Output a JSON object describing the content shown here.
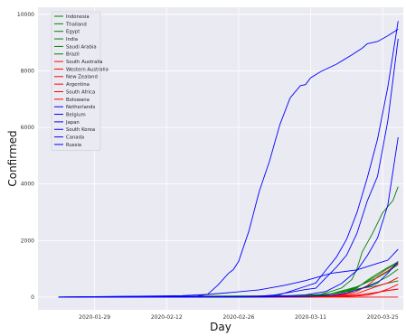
{
  "chart_data": {
    "type": "line",
    "xlabel": "Day",
    "ylabel": "Confirmed",
    "xlim": [
      "2020-01-18",
      "2020-03-29"
    ],
    "ylim": [
      -450,
      10250
    ],
    "x_ticks": [
      "2020-01-29",
      "2020-02-12",
      "2020-02-26",
      "2020-03-11",
      "2020-03-25"
    ],
    "y_ticks": [
      0,
      2000,
      4000,
      6000,
      8000,
      10000
    ],
    "grid": true,
    "legend_position": "top-left",
    "series": [
      {
        "name": "Indonesia",
        "color": "#008000",
        "points": [
          [
            "2020-01-22",
            0
          ],
          [
            "2020-03-01",
            0
          ],
          [
            "2020-03-02",
            2
          ],
          [
            "2020-03-10",
            27
          ],
          [
            "2020-03-15",
            117
          ],
          [
            "2020-03-20",
            369
          ],
          [
            "2020-03-24",
            686
          ],
          [
            "2020-03-26",
            893
          ],
          [
            "2020-03-28",
            1155
          ]
        ]
      },
      {
        "name": "Thailand",
        "color": "#008000",
        "points": [
          [
            "2020-01-22",
            2
          ],
          [
            "2020-02-12",
            33
          ],
          [
            "2020-03-01",
            42
          ],
          [
            "2020-03-10",
            53
          ],
          [
            "2020-03-14",
            82
          ],
          [
            "2020-03-17",
            177
          ],
          [
            "2020-03-20",
            322
          ],
          [
            "2020-03-22",
            599
          ],
          [
            "2020-03-24",
            827
          ],
          [
            "2020-03-26",
            1045
          ],
          [
            "2020-03-28",
            1245
          ]
        ]
      },
      {
        "name": "Egypt",
        "color": "#008000",
        "points": [
          [
            "2020-01-22",
            0
          ],
          [
            "2020-02-14",
            1
          ],
          [
            "2020-03-06",
            15
          ],
          [
            "2020-03-09",
            59
          ],
          [
            "2020-03-15",
            110
          ],
          [
            "2020-03-20",
            285
          ],
          [
            "2020-03-24",
            402
          ],
          [
            "2020-03-26",
            495
          ],
          [
            "2020-03-28",
            576
          ]
        ]
      },
      {
        "name": "India",
        "color": "#008000",
        "points": [
          [
            "2020-01-22",
            0
          ],
          [
            "2020-01-30",
            1
          ],
          [
            "2020-03-03",
            5
          ],
          [
            "2020-03-10",
            56
          ],
          [
            "2020-03-15",
            113
          ],
          [
            "2020-03-20",
            244
          ],
          [
            "2020-03-24",
            536
          ],
          [
            "2020-03-26",
            727
          ],
          [
            "2020-03-28",
            987
          ]
        ]
      },
      {
        "name": "Saudi Arabia",
        "color": "#008000",
        "points": [
          [
            "2020-01-22",
            0
          ],
          [
            "2020-03-02",
            0
          ],
          [
            "2020-03-08",
            11
          ],
          [
            "2020-03-12",
            45
          ],
          [
            "2020-03-15",
            103
          ],
          [
            "2020-03-18",
            238
          ],
          [
            "2020-03-20",
            344
          ],
          [
            "2020-03-24",
            767
          ],
          [
            "2020-03-26",
            1012
          ],
          [
            "2020-03-28",
            1203
          ]
        ]
      },
      {
        "name": "Brazil",
        "color": "#008000",
        "points": [
          [
            "2020-01-22",
            0
          ],
          [
            "2020-02-26",
            1
          ],
          [
            "2020-03-05",
            8
          ],
          [
            "2020-03-10",
            25
          ],
          [
            "2020-03-12",
            52
          ],
          [
            "2020-03-15",
            200
          ],
          [
            "2020-03-17",
            321
          ],
          [
            "2020-03-19",
            621
          ],
          [
            "2020-03-20",
            1000
          ],
          [
            "2020-03-21",
            1593
          ],
          [
            "2020-03-23",
            2247
          ],
          [
            "2020-03-25",
            2985
          ],
          [
            "2020-03-27",
            3417
          ],
          [
            "2020-03-28",
            3904
          ]
        ]
      },
      {
        "name": "South Australia",
        "color": "#ff0000",
        "points": [
          [
            "2020-01-22",
            0
          ],
          [
            "2020-03-09",
            7
          ],
          [
            "2020-03-15",
            20
          ],
          [
            "2020-03-20",
            67
          ],
          [
            "2020-03-23",
            134
          ],
          [
            "2020-03-26",
            235
          ],
          [
            "2020-03-28",
            287
          ]
        ]
      },
      {
        "name": "Western Australia",
        "color": "#ff0000",
        "points": [
          [
            "2020-01-22",
            0
          ],
          [
            "2020-03-09",
            3
          ],
          [
            "2020-03-15",
            14
          ],
          [
            "2020-03-20",
            64
          ],
          [
            "2020-03-23",
            140
          ],
          [
            "2020-03-26",
            231
          ],
          [
            "2020-03-28",
            278
          ]
        ]
      },
      {
        "name": "New Zealand",
        "color": "#ff0000",
        "points": [
          [
            "2020-01-22",
            0
          ],
          [
            "2020-02-28",
            1
          ],
          [
            "2020-03-15",
            8
          ],
          [
            "2020-03-20",
            39
          ],
          [
            "2020-03-22",
            66
          ],
          [
            "2020-03-24",
            155
          ],
          [
            "2020-03-26",
            283
          ],
          [
            "2020-03-28",
            451
          ]
        ]
      },
      {
        "name": "Argentina",
        "color": "#ff0000",
        "points": [
          [
            "2020-01-22",
            0
          ],
          [
            "2020-03-03",
            1
          ],
          [
            "2020-03-10",
            19
          ],
          [
            "2020-03-15",
            45
          ],
          [
            "2020-03-18",
            79
          ],
          [
            "2020-03-20",
            128
          ],
          [
            "2020-03-24",
            387
          ],
          [
            "2020-03-26",
            502
          ],
          [
            "2020-03-28",
            690
          ]
        ]
      },
      {
        "name": "South Africa",
        "color": "#ff0000",
        "points": [
          [
            "2020-01-22",
            0
          ],
          [
            "2020-03-05",
            1
          ],
          [
            "2020-03-12",
            17
          ],
          [
            "2020-03-15",
            51
          ],
          [
            "2020-03-18",
            116
          ],
          [
            "2020-03-20",
            202
          ],
          [
            "2020-03-22",
            402
          ],
          [
            "2020-03-24",
            709
          ],
          [
            "2020-03-26",
            927
          ],
          [
            "2020-03-28",
            1187
          ]
        ]
      },
      {
        "name": "Botswana",
        "color": "#ff0000",
        "points": [
          [
            "2020-01-22",
            0
          ],
          [
            "2020-03-28",
            0
          ]
        ]
      },
      {
        "name": "Netherlands",
        "color": "#0000ff",
        "points": [
          [
            "2020-01-22",
            0
          ],
          [
            "2020-02-27",
            1
          ],
          [
            "2020-03-05",
            82
          ],
          [
            "2020-03-10",
            382
          ],
          [
            "2020-03-12",
            503
          ],
          [
            "2020-03-14",
            959
          ],
          [
            "2020-03-16",
            1413
          ],
          [
            "2020-03-18",
            2051
          ],
          [
            "2020-03-20",
            2994
          ],
          [
            "2020-03-22",
            4216
          ],
          [
            "2020-03-24",
            5585
          ],
          [
            "2020-03-26",
            7431
          ],
          [
            "2020-03-28",
            9762
          ]
        ]
      },
      {
        "name": "Belgium",
        "color": "#0000ff",
        "points": [
          [
            "2020-01-22",
            0
          ],
          [
            "2020-02-04",
            1
          ],
          [
            "2020-03-02",
            8
          ],
          [
            "2020-03-07",
            169
          ],
          [
            "2020-03-10",
            267
          ],
          [
            "2020-03-12",
            314
          ],
          [
            "2020-03-14",
            689
          ],
          [
            "2020-03-16",
            1058
          ],
          [
            "2020-03-18",
            1486
          ],
          [
            "2020-03-20",
            2257
          ],
          [
            "2020-03-22",
            3401
          ],
          [
            "2020-03-24",
            4269
          ],
          [
            "2020-03-26",
            6235
          ],
          [
            "2020-03-28",
            9134
          ]
        ]
      },
      {
        "name": "Japan",
        "color": "#0000ff",
        "points": [
          [
            "2020-01-22",
            2
          ],
          [
            "2020-02-05",
            25
          ],
          [
            "2020-02-15",
            53
          ],
          [
            "2020-02-20",
            94
          ],
          [
            "2020-02-25",
            170
          ],
          [
            "2020-03-01",
            256
          ],
          [
            "2020-03-06",
            420
          ],
          [
            "2020-03-10",
            581
          ],
          [
            "2020-03-15",
            839
          ],
          [
            "2020-03-20",
            963
          ],
          [
            "2020-03-24",
            1193
          ],
          [
            "2020-03-26",
            1307
          ],
          [
            "2020-03-28",
            1693
          ]
        ]
      },
      {
        "name": "South Korea",
        "color": "#0000ff",
        "points": [
          [
            "2020-01-22",
            1
          ],
          [
            "2020-02-10",
            27
          ],
          [
            "2020-02-18",
            31
          ],
          [
            "2020-02-20",
            104
          ],
          [
            "2020-02-22",
            433
          ],
          [
            "2020-02-24",
            833
          ],
          [
            "2020-02-25",
            977
          ],
          [
            "2020-02-26",
            1261
          ],
          [
            "2020-02-28",
            2337
          ],
          [
            "2020-03-01",
            3736
          ],
          [
            "2020-03-03",
            4812
          ],
          [
            "2020-03-05",
            6088
          ],
          [
            "2020-03-07",
            7041
          ],
          [
            "2020-03-09",
            7478
          ],
          [
            "2020-03-10",
            7513
          ],
          [
            "2020-03-11",
            7755
          ],
          [
            "2020-03-13",
            7979
          ],
          [
            "2020-03-16",
            8236
          ],
          [
            "2020-03-19",
            8565
          ],
          [
            "2020-03-21",
            8799
          ],
          [
            "2020-03-22",
            8961
          ],
          [
            "2020-03-24",
            9037
          ],
          [
            "2020-03-26",
            9241
          ],
          [
            "2020-03-28",
            9478
          ]
        ]
      },
      {
        "name": "Canada",
        "color": "#0000ff",
        "points": [
          [
            "2020-01-22",
            0
          ],
          [
            "2020-01-26",
            1
          ],
          [
            "2020-02-20",
            8
          ],
          [
            "2020-03-05",
            37
          ],
          [
            "2020-03-10",
            79
          ],
          [
            "2020-03-14",
            198
          ],
          [
            "2020-03-17",
            478
          ],
          [
            "2020-03-20",
            943
          ],
          [
            "2020-03-22",
            1465
          ],
          [
            "2020-03-24",
            2088
          ],
          [
            "2020-03-26",
            3251
          ],
          [
            "2020-03-28",
            5655
          ]
        ]
      },
      {
        "name": "Russia",
        "color": "#0000ff",
        "points": [
          [
            "2020-01-22",
            0
          ],
          [
            "2020-01-31",
            2
          ],
          [
            "2020-03-02",
            3
          ],
          [
            "2020-03-10",
            20
          ],
          [
            "2020-03-15",
            63
          ],
          [
            "2020-03-18",
            147
          ],
          [
            "2020-03-20",
            253
          ],
          [
            "2020-03-22",
            367
          ],
          [
            "2020-03-24",
            495
          ],
          [
            "2020-03-26",
            840
          ],
          [
            "2020-03-28",
            1264
          ]
        ]
      }
    ]
  }
}
